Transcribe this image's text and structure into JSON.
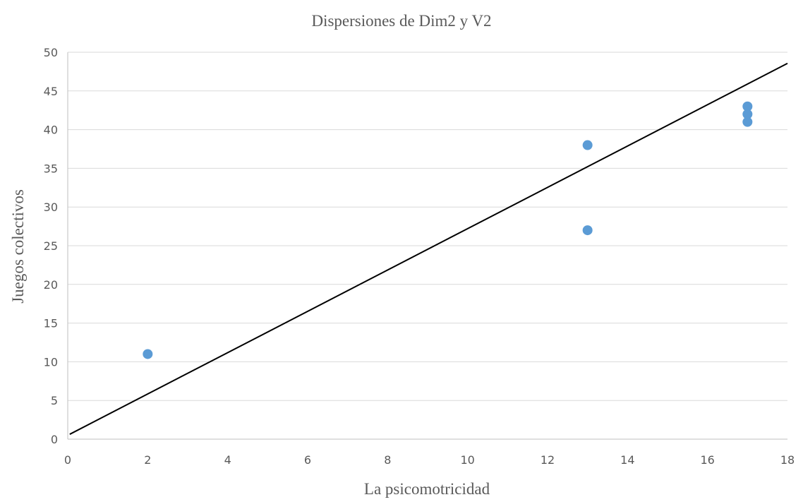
{
  "chart_data": {
    "type": "scatter",
    "title": "Dispersiones de Dim2 y V2",
    "xlabel": "La psicomotricidad",
    "ylabel": "Juegos colectivos",
    "xlim": [
      0,
      18
    ],
    "ylim": [
      0,
      50
    ],
    "x_ticks": [
      0,
      2,
      4,
      6,
      8,
      10,
      12,
      14,
      16,
      18
    ],
    "y_ticks": [
      0,
      5,
      10,
      15,
      20,
      25,
      30,
      35,
      40,
      45,
      50
    ],
    "grid": "horizontal",
    "series": [
      {
        "points": [
          {
            "x": 2,
            "y": 11
          },
          {
            "x": 13,
            "y": 38
          },
          {
            "x": 13,
            "y": 27
          },
          {
            "x": 17,
            "y": 43
          },
          {
            "x": 17,
            "y": 42
          },
          {
            "x": 17,
            "y": 41
          }
        ],
        "color": "#5b9bd5"
      }
    ],
    "trendline": {
      "type": "linear",
      "slope": 2.67,
      "intercept": 0.5,
      "color": "#000000"
    }
  }
}
